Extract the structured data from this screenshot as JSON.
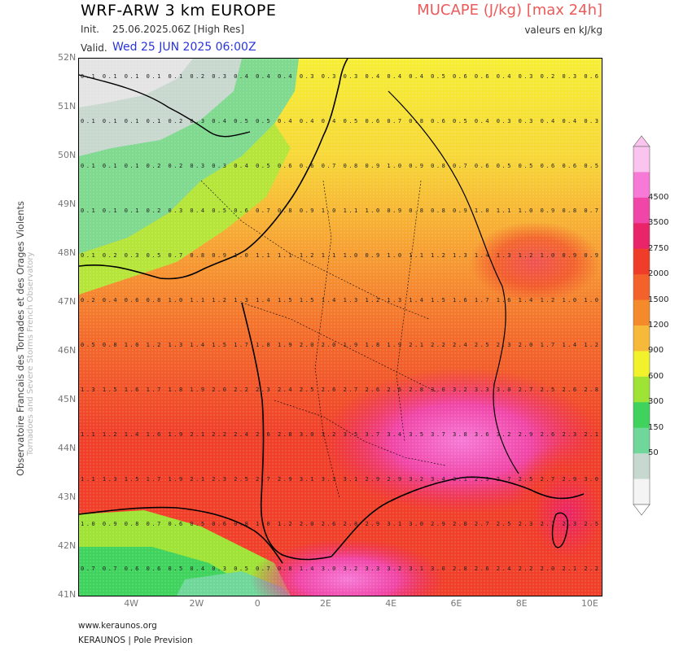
{
  "header": {
    "title": "WRF-ARW 3 km EUROPE",
    "init_label": "Init.",
    "init_value": "25.06.2025.06Z [High Res]",
    "valid_label": "Valid.",
    "valid_value": "Wed 25 JUN 2025 06:00Z",
    "parameter": "MUCAPE (J/kg) [max 24h]",
    "units_note": "valeurs en kJ/kg"
  },
  "side_text": {
    "line1": "Observatoire Francais des Tornades et des Orages Violents",
    "line2": "Tornadoes and Severe Storms French Observatory"
  },
  "footer": {
    "url": "www.keraunos.org",
    "brand": "KERAUNOS | Pole Prevision"
  },
  "map": {
    "lat_labels": [
      "52N",
      "51N",
      "50N",
      "49N",
      "48N",
      "47N",
      "46N",
      "45N",
      "44N",
      "43N",
      "42N",
      "41N"
    ],
    "lon_labels": [
      "4W",
      "2W",
      "0",
      "2E",
      "4E",
      "6E",
      "8E",
      "10E"
    ],
    "lat_range": [
      41,
      52
    ],
    "lon_range": [
      -5.6,
      10.4
    ],
    "grid_values_kj_kg": [
      "0.1 0.1 0.1 0.1 0.1 0.2 0.3 0.4 0.4 0.4 0.3 0.3 0.3 0.4 0.4 0.4 0.5 0.6 0.6 0.4 0.3 0.2 0.3 0.6",
      "0.1 0.1 0.1 0.1 0.2 0.3 0.4 0.5 0.5 0.4 0.4 0.4 0.5 0.6 0.7 0.8 0.6 0.5 0.4 0.3 0.3 0.4 0.4 0.3",
      "0.1 0.1 0.1 0.2 0.2 0.3 0.3 0.4 0.5 0.6 0.6 0.7 0.8 0.9 1.0 0.9 0.8 0.7 0.6 0.5 0.5 0.6 0.6 0.5",
      "0.1 0.1 0.1 0.2 0.3 0.4 0.5 0.6 0.7 0.8 0.9 1.0 1.1 1.0 0.9 0.8 0.8 0.9 1.0 1.1 1.0 0.9 0.8 0.7",
      "0.1 0.2 0.3 0.5 0.7 0.8 0.9 1.0 1.1 1.1 1.2 1.1 1.0 0.9 1.0 1.1 1.2 1.3 1.4 1.3 1.2 1.0 0.9 0.9",
      "0.2 0.4 0.6 0.8 1.0 1.1 1.2 1.3 1.4 1.5 1.5 1.4 1.3 1.2 1.3 1.4 1.5 1.6 1.7 1.6 1.4 1.2 1.0 1.0",
      "0.5 0.8 1.0 1.2 1.3 1.4 1.5 1.7 1.8 1.9 2.0 2.0 1.9 1.8 1.9 2.1 2.2 2.4 2.5 2.3 2.0 1.7 1.4 1.2",
      "1.3 1.5 1.6 1.7 1.8 1.9 2.0 2.2 2.3 2.4 2.5 2.6 2.7 2.6 2.6 2.8 3.0 3.2 3.3 3.0 2.7 2.5 2.6 2.8",
      "1.1 1.2 1.4 1.6 1.9 2.1 2.2 2.4 2.6 2.8 3.0 3.2 3.5 3.7 3.4 3.5 3.7 3.8 3.6 3.2 2.9 2.6 2.3 2.1",
      "1.1 1.3 1.5 1.7 1.9 2.1 2.3 2.5 2.7 2.9 3.1 3.3 3.1 2.9 2.9 3.2 3.4 3.1 2.9 2.7 2.5 2.7 2.9 3.0",
      "1.0 0.9 0.8 0.7 0.6 0.5 0.6 0.8 1.0 1.2 2.0 2.6 2.8 2.9 3.1 3.0 2.9 2.8 2.7 2.5 2.3 2.1 2.3 2.5",
      "0.7 0.7 0.6 0.6 0.5 0.4 0.3 0.5 0.7 0.8 1.4 3.0 3.2 3.3 3.2 3.1 3.0 2.8 2.6 2.4 2.2 2.0 2.1 2.2"
    ]
  },
  "colorbar": {
    "title": "MUCAPE (J/kg)",
    "levels": [
      0,
      50,
      150,
      300,
      600,
      900,
      1200,
      1500,
      2000,
      2750,
      3500,
      4500
    ],
    "labels": [
      "50",
      "150",
      "300",
      "600",
      "900",
      "1200",
      "1500",
      "2000",
      "2750",
      "3500",
      "4500"
    ],
    "colors": [
      "#f4f4f4",
      "#c7d8cf",
      "#6fd79a",
      "#3fd35d",
      "#9ee335",
      "#f1f22c",
      "#f7b93a",
      "#f58a2b",
      "#f2622a",
      "#f03d2a",
      "#ea2468",
      "#f046a8",
      "#f67ad6",
      "#fbc4ef"
    ]
  }
}
